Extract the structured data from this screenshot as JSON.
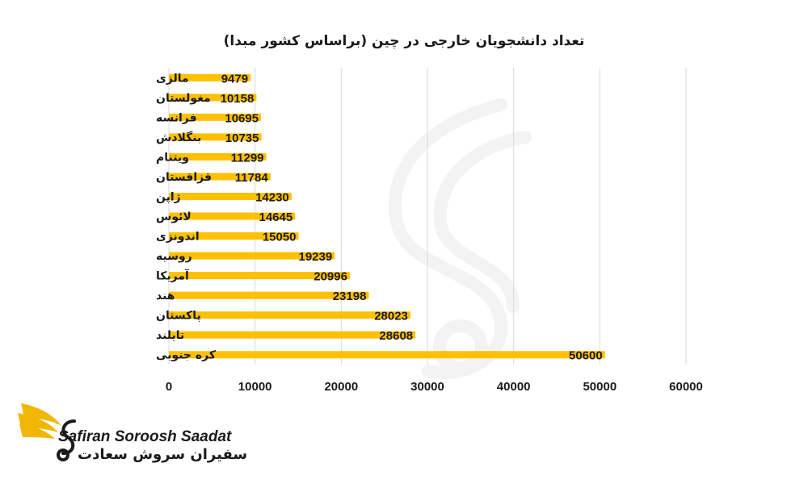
{
  "colors": {
    "bar": "#FFC000",
    "text": "#1a1a1a",
    "grid": "#d9d9d9",
    "logo": "#F2B705"
  },
  "logo": {
    "name_en": "Safiran Soroosh Saadat",
    "name_fa": "سفیران سروش سعادت",
    "icon": "golden-wing-s-logo"
  },
  "chart_data": {
    "type": "bar",
    "orientation": "horizontal",
    "title": "تعداد دانشجویان خارجی در چین (براساس کشور مبدا)",
    "categories": [
      "مالزی",
      "مغولستان",
      "فرانسه",
      "بنگلادش",
      "ویتنام",
      "قزاقستان",
      "ژاپن",
      "لائوس",
      "اندونزی",
      "روسیه",
      "آمریکا",
      "هند",
      "پاکستان",
      "تایلند",
      "کره جنوبی"
    ],
    "values": [
      9479,
      10158,
      10695,
      10735,
      11299,
      11784,
      14230,
      14645,
      15050,
      19239,
      20996,
      23198,
      28023,
      28608,
      50600
    ],
    "value_labels": [
      "9479",
      "10158",
      "10695",
      "10735",
      "11299",
      "11784",
      "14230",
      "14645",
      "15050",
      "19239",
      "20996",
      "23198",
      "28023",
      "28608",
      "50600"
    ],
    "xticks": [
      "0",
      "10000",
      "20000",
      "30000",
      "40000",
      "50000",
      "60000"
    ],
    "xlim": [
      0,
      60000
    ],
    "xlabel": "",
    "ylabel": "",
    "grid": true,
    "legend": "none"
  }
}
